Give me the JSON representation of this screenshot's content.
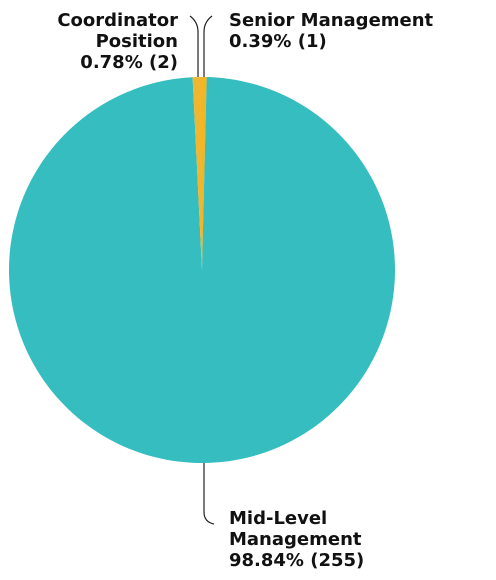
{
  "chart_data": {
    "type": "pie",
    "title": "",
    "slices": [
      {
        "category": "Senior Management",
        "value": 1,
        "percent_label": "0.39% (1)",
        "color": "#f3b61f",
        "label_lines": [
          "Senior Management",
          "0.39% (1)"
        ]
      },
      {
        "category": "Mid-Level Management",
        "value": 255,
        "percent_label": "98.84% (255)",
        "color": "#35bdbf",
        "label_lines": [
          "Mid-Level",
          "Management",
          "98.84% (255)"
        ]
      },
      {
        "category": "Coordinator Position",
        "value": 2,
        "percent_label": "0.78% (2)",
        "color": "#f0b630",
        "label_lines": [
          "Coordinator",
          "Position",
          "0.78% (2)"
        ]
      }
    ]
  }
}
